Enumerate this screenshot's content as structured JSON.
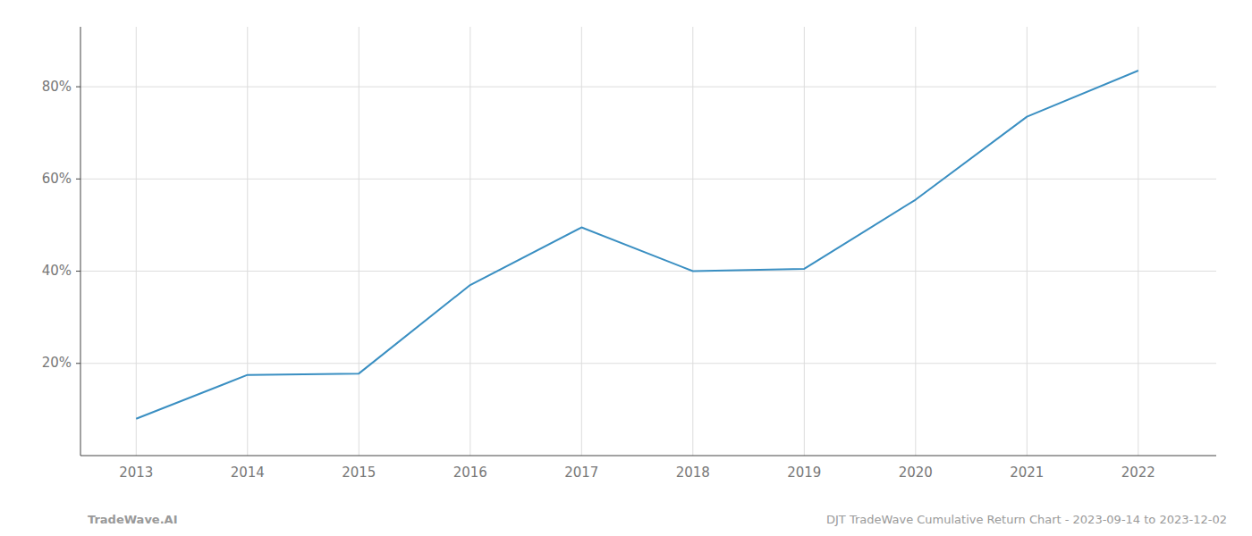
{
  "chart_data": {
    "type": "line",
    "x": [
      2013,
      2014,
      2015,
      2016,
      2017,
      2018,
      2019,
      2020,
      2021,
      2022
    ],
    "values": [
      0.08,
      0.175,
      0.178,
      0.37,
      0.495,
      0.4,
      0.405,
      0.555,
      0.735,
      0.835
    ],
    "color": "#3a8fc2",
    "xlim": [
      2012.5,
      2022.7
    ],
    "ylim": [
      0.0,
      0.93
    ],
    "xticks": [
      2013,
      2014,
      2015,
      2016,
      2017,
      2018,
      2019,
      2020,
      2021,
      2022
    ],
    "yticks": [
      {
        "value": 0.2,
        "label": "20%"
      },
      {
        "value": 0.4,
        "label": "40%"
      },
      {
        "value": 0.6,
        "label": "60%"
      },
      {
        "value": 0.8,
        "label": "80%"
      }
    ],
    "grid": true,
    "annotations": [
      "TradeWave.AI",
      "DJT TradeWave Cumulative Return Chart - 2023-09-14 to 2023-12-02"
    ]
  }
}
